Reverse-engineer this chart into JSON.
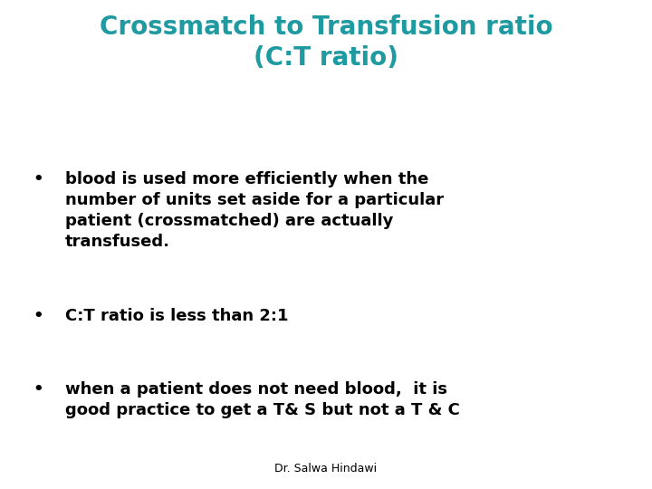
{
  "title_line1": "Crossmatch to Transfusion ratio",
  "title_line2": "(C:T ratio)",
  "title_color": "#1E9AA0",
  "background_color": "#ffffff",
  "bullet_color": "#000000",
  "bullet_points": [
    "blood is used more efficiently when the\nnumber of units set aside for a particular\npatient (crossmatched) are actually\ntransfused.",
    "C:T ratio is less than 2:1",
    "when a patient does not need blood,  it is\ngood practice to get a T& S but not a T & C"
  ],
  "footer": "Dr. Salwa Hindawi",
  "title_fontsize": 20,
  "bullet_fontsize": 13,
  "footer_fontsize": 9
}
